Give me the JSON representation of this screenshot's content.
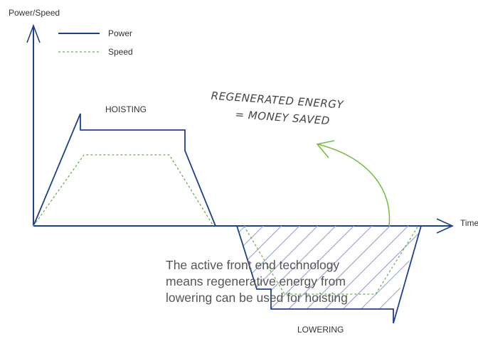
{
  "axes": {
    "y_label": "Power/Speed",
    "x_label": "Time"
  },
  "legend": {
    "items": [
      {
        "name": "Power",
        "style": "solid",
        "color": "#1f3f8f"
      },
      {
        "name": "Speed",
        "style": "dashed",
        "color": "#6ab04c"
      }
    ]
  },
  "phases": {
    "hoisting": "HOISTING",
    "lowering": "LOWERING"
  },
  "annotation": {
    "line1": "REGENERATED ENERGY",
    "line2": "= MONEY SAVED",
    "arrow_color": "#7bbf3f"
  },
  "caption": {
    "lines": [
      "The active front end technology",
      "means regenerative energy from",
      "lowering can be used for hoisting"
    ]
  },
  "colors": {
    "power": "#1f3f8f",
    "speed": "#6ab04c",
    "hatch": "#9aa0cf",
    "axis": "#1f3f8f"
  }
}
